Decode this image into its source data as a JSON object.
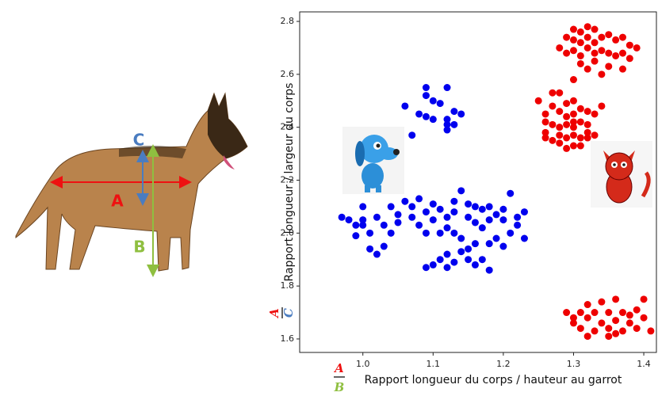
{
  "chart_data": {
    "type": "scatter",
    "y_label": "Rapport longueur / largeur du corps",
    "x_label": "Rapport longueur du corps / hauteur au garrot",
    "y_fraction": {
      "numerator": "A",
      "denominator": "C"
    },
    "x_fraction": {
      "numerator": "A",
      "denominator": "B"
    },
    "xlim": [
      0.91,
      1.418
    ],
    "ylim": [
      1.549,
      2.836
    ],
    "xticks": [
      {
        "value": 1,
        "label": "1.0"
      },
      1.1,
      1.2,
      1.3,
      1.4
    ],
    "yticks": [
      1.6,
      1.8,
      {
        "value": 2,
        "label": "2.0"
      },
      2.2,
      2.4,
      2.6,
      2.8
    ],
    "series": [
      {
        "color": "#0000ee",
        "x": [
          1.06,
          1.09,
          1.09,
          1.1,
          1.12,
          1.11,
          1.08,
          1.09,
          1.1,
          1.12,
          1.13,
          1.14,
          1.12,
          1.13,
          1.07,
          1.12,
          0.97,
          0.98,
          0.99,
          1.0,
          1.0,
          1.0,
          1.01,
          0.99,
          1.01,
          1.02,
          1.03,
          1.02,
          1.03,
          1.04,
          1.05,
          1.04,
          1.05,
          1.06,
          1.07,
          1.08,
          1.07,
          1.09,
          1.1,
          1.1,
          1.11,
          1.12,
          1.13,
          1.14,
          1.13,
          1.15,
          1.16,
          1.17,
          1.18,
          1.15,
          1.16,
          1.17,
          1.18,
          1.19,
          1.2,
          1.21,
          1.2,
          1.22,
          1.22,
          1.23,
          1.23,
          1.21,
          1.19,
          1.18,
          1.16,
          1.14,
          1.13,
          1.12,
          1.11,
          1.15,
          1.14,
          1.12,
          1.11,
          1.1,
          1.09,
          1.12,
          1.13,
          1.15,
          1.16,
          1.17,
          1.18,
          1.2,
          1.08,
          1.09
        ],
        "values": [
          2.48,
          2.52,
          2.55,
          2.5,
          2.55,
          2.49,
          2.45,
          2.44,
          2.43,
          2.43,
          2.46,
          2.45,
          2.41,
          2.41,
          2.37,
          2.39,
          2.06,
          2.05,
          2.03,
          2.05,
          2.1,
          2.03,
          2.0,
          1.99,
          1.94,
          1.92,
          1.95,
          2.06,
          2.03,
          2.0,
          2.07,
          2.1,
          2.04,
          2.12,
          2.1,
          2.13,
          2.06,
          2.08,
          2.11,
          2.05,
          2.09,
          2.06,
          2.08,
          2.16,
          2.12,
          2.11,
          2.1,
          2.09,
          2.1,
          2.06,
          2.04,
          2.02,
          2.05,
          2.07,
          2.09,
          2.15,
          2.05,
          2.06,
          2.03,
          2.08,
          1.98,
          2.0,
          1.98,
          1.96,
          1.96,
          1.98,
          2.0,
          2.02,
          2.0,
          1.94,
          1.93,
          1.92,
          1.9,
          1.88,
          1.87,
          1.87,
          1.89,
          1.9,
          1.88,
          1.9,
          1.86,
          1.95,
          2.03,
          2.0
        ]
      },
      {
        "color": "#ee0000",
        "x": [
          1.3,
          1.31,
          1.32,
          1.33,
          1.29,
          1.3,
          1.31,
          1.32,
          1.33,
          1.34,
          1.35,
          1.36,
          1.37,
          1.38,
          1.39,
          1.28,
          1.29,
          1.3,
          1.31,
          1.32,
          1.33,
          1.34,
          1.35,
          1.36,
          1.37,
          1.38,
          1.33,
          1.31,
          1.35,
          1.37,
          1.32,
          1.3,
          1.34,
          1.25,
          1.27,
          1.28,
          1.27,
          1.29,
          1.3,
          1.26,
          1.28,
          1.29,
          1.3,
          1.31,
          1.32,
          1.26,
          1.27,
          1.28,
          1.29,
          1.3,
          1.31,
          1.33,
          1.34,
          1.26,
          1.28,
          1.29,
          1.3,
          1.31,
          1.32,
          1.27,
          1.3,
          1.29,
          1.31,
          1.32,
          1.33,
          1.26,
          1.28,
          1.3,
          1.32,
          1.29,
          1.3,
          1.31,
          1.32,
          1.3,
          1.31,
          1.32,
          1.33,
          1.34,
          1.35,
          1.36,
          1.34,
          1.35,
          1.36,
          1.37,
          1.38,
          1.39,
          1.37,
          1.36,
          1.38,
          1.4,
          1.4,
          1.41,
          1.39,
          1.33,
          1.32,
          1.35
        ],
        "values": [
          2.77,
          2.76,
          2.78,
          2.77,
          2.74,
          2.73,
          2.72,
          2.74,
          2.72,
          2.74,
          2.75,
          2.73,
          2.74,
          2.71,
          2.7,
          2.7,
          2.68,
          2.69,
          2.67,
          2.7,
          2.68,
          2.69,
          2.68,
          2.67,
          2.68,
          2.66,
          2.65,
          2.64,
          2.63,
          2.62,
          2.62,
          2.58,
          2.6,
          2.5,
          2.53,
          2.53,
          2.48,
          2.49,
          2.5,
          2.45,
          2.46,
          2.44,
          2.45,
          2.47,
          2.46,
          2.42,
          2.41,
          2.4,
          2.41,
          2.4,
          2.42,
          2.45,
          2.48,
          2.38,
          2.37,
          2.36,
          2.37,
          2.36,
          2.38,
          2.35,
          2.33,
          2.32,
          2.33,
          2.36,
          2.37,
          2.36,
          2.34,
          2.42,
          2.41,
          1.7,
          1.68,
          1.7,
          1.73,
          1.66,
          1.64,
          1.68,
          1.7,
          1.74,
          1.7,
          1.75,
          1.66,
          1.64,
          1.67,
          1.7,
          1.66,
          1.64,
          1.63,
          1.62,
          1.69,
          1.68,
          1.75,
          1.63,
          1.71,
          1.63,
          1.61,
          1.61
        ]
      }
    ]
  },
  "illustration": {
    "labels": {
      "length": "A",
      "height": "B",
      "width": "C"
    }
  }
}
